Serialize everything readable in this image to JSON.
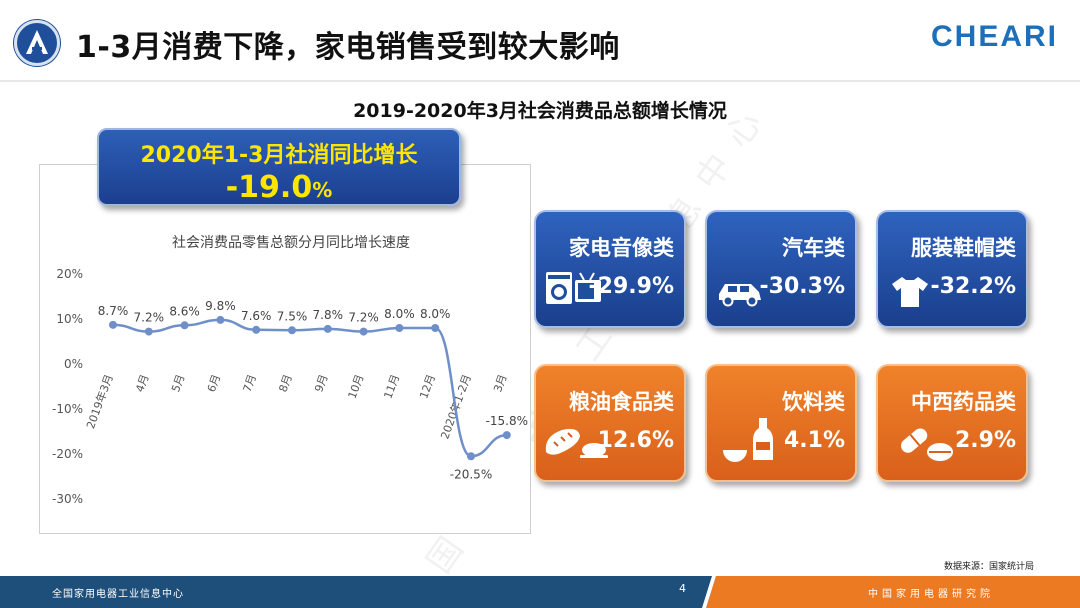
{
  "header": {
    "title": "1-3月消费下降，家电销售受到较大影响",
    "brand": "CHEARI"
  },
  "chart_title": "2019-2020年3月社会消费品总额增长情况",
  "highlight": {
    "label": "2020年1-3月社消同比增长",
    "value": "-19.0",
    "unit": "%"
  },
  "chart_data": {
    "type": "line",
    "title": "社会消费品零售总额分月同比增长速度",
    "categories": [
      "2019年3月",
      "4月",
      "5月",
      "6月",
      "7月",
      "8月",
      "9月",
      "10月",
      "11月",
      "12月",
      "2020年1-2月",
      "3月"
    ],
    "values": [
      8.7,
      7.2,
      8.6,
      9.8,
      7.6,
      7.5,
      7.8,
      7.2,
      8.0,
      8.0,
      -20.5,
      -15.8
    ],
    "data_labels": [
      "8.7%",
      "7.2%",
      "8.6%",
      "9.8%",
      "7.6%",
      "7.5%",
      "7.8%",
      "7.2%",
      "8.0%",
      "8.0%",
      "-20.5%",
      "-15.8%"
    ],
    "y_ticks": [
      "20%",
      "10%",
      "0%",
      "-10%",
      "-20%",
      "-30%"
    ],
    "ylim": [
      -30,
      20
    ],
    "grid": false,
    "color": "#6f8fc9"
  },
  "cards": [
    {
      "name": "家电音像类",
      "value": "-29.9%",
      "icon": "appliance-icon",
      "theme": "blue"
    },
    {
      "name": "汽车类",
      "value": "-30.3%",
      "icon": "car-icon",
      "theme": "blue"
    },
    {
      "name": "服装鞋帽类",
      "value": "-32.2%",
      "icon": "tshirt-icon",
      "theme": "blue"
    },
    {
      "name": "粮油食品类",
      "value": "12.6%",
      "icon": "food-icon",
      "theme": "orange"
    },
    {
      "name": "饮料类",
      "value": "4.1%",
      "icon": "drink-icon",
      "theme": "orange"
    },
    {
      "name": "中西药品类",
      "value": "2.9%",
      "icon": "pill-icon",
      "theme": "orange"
    }
  ],
  "source": "数据来源：国家统计局",
  "footer": {
    "left": "全国家用电器工业信息中心",
    "right": "中国家用电器研究院",
    "page": "4"
  },
  "watermark": "全国家用电器工业信息中心",
  "colors": {
    "blue": "#1f4e9a",
    "orange": "#ec7a22",
    "highlight": "#ffe600",
    "brand": "#1e6fb8"
  }
}
